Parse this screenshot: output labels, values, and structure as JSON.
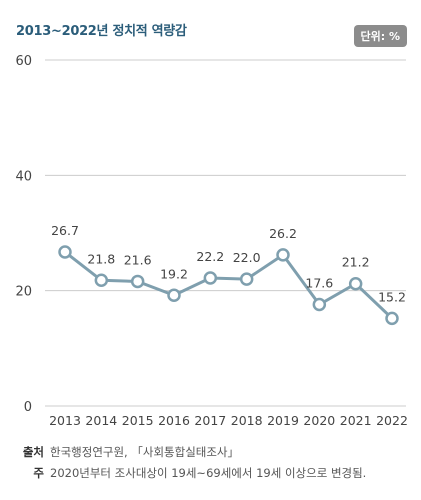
{
  "header": {
    "title": "2013~2022년 정치적 역량감",
    "unit_badge": "단위: %"
  },
  "chart_data": {
    "type": "line",
    "title": "2013~2022년 정치적 역량감",
    "x": [
      "2013",
      "2014",
      "2015",
      "2016",
      "2017",
      "2018",
      "2019",
      "2020",
      "2021",
      "2022"
    ],
    "series": [
      {
        "values": [
          26.7,
          21.8,
          21.6,
          19.2,
          22.2,
          22.0,
          26.2,
          17.6,
          21.2,
          15.2
        ]
      }
    ],
    "value_labels": [
      "26.7",
      "21.8",
      "21.6",
      "19.2",
      "22.2",
      "22.0",
      "26.2",
      "17.6",
      "21.2",
      "15.2"
    ],
    "yticks": [
      "0",
      "20",
      "40",
      "60"
    ],
    "ylim": [
      0,
      60
    ],
    "grid": true,
    "xlabel": "",
    "ylabel": "",
    "colors": {
      "line": "#7f9fae",
      "grid": "#cccccc",
      "tick": "#444444"
    }
  },
  "footer": {
    "source_label": "출처",
    "source_text": "한국행정연구원, 「사회통합실태조사」",
    "note_label": "주",
    "note_text": "2020년부터 조사대상이 19세~69세에서 19세 이상으로 변경됨."
  }
}
